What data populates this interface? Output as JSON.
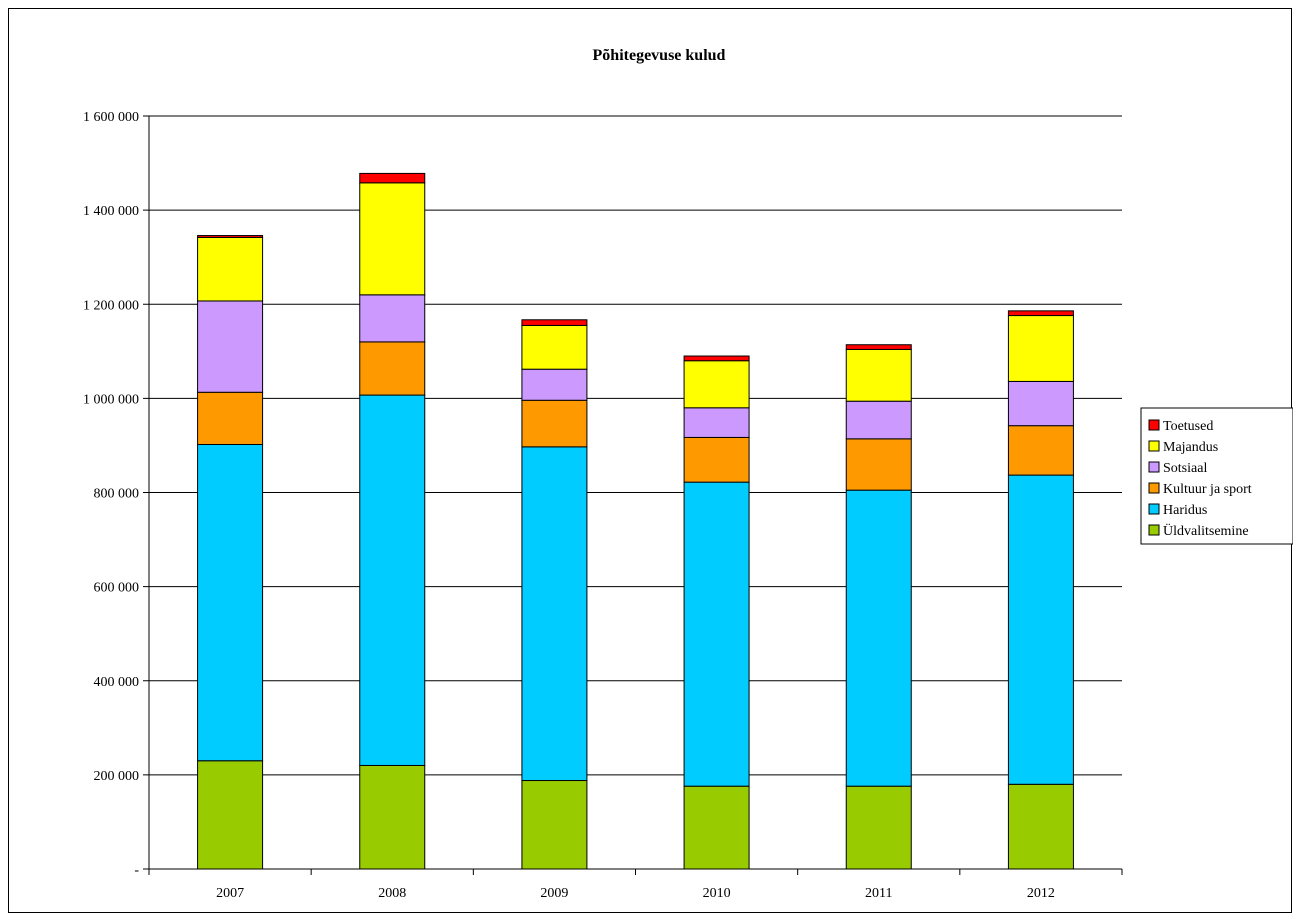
{
  "chart_data": {
    "type": "bar",
    "stacked": true,
    "title": "Põhitegevuse kulud",
    "xlabel": "",
    "ylabel": "",
    "categories": [
      "2007",
      "2008",
      "2009",
      "2010",
      "2011",
      "2012"
    ],
    "ylim": [
      0,
      1600000
    ],
    "yticks": [
      0,
      200000,
      400000,
      600000,
      800000,
      1000000,
      1200000,
      1400000,
      1600000
    ],
    "ytick_labels": [
      "-",
      "200 000",
      "400 000",
      "600 000",
      "800 000",
      "1 000 000",
      "1 200 000",
      "1 400 000",
      "1 600 000"
    ],
    "grid": true,
    "legend_position": "right",
    "series": [
      {
        "name": "Üldvalitsemine",
        "color": "#99cc00",
        "values": [
          230000,
          220000,
          188000,
          176000,
          176000,
          180000
        ]
      },
      {
        "name": "Haridus",
        "color": "#00ccff",
        "values": [
          672000,
          787000,
          709000,
          646000,
          629000,
          657000
        ]
      },
      {
        "name": "Kultuur ja sport",
        "color": "#ff9900",
        "values": [
          111000,
          113000,
          99000,
          95000,
          109000,
          105000
        ]
      },
      {
        "name": "Sotsiaal",
        "color": "#cc99ff",
        "values": [
          194000,
          100000,
          66000,
          63000,
          80000,
          94000
        ]
      },
      {
        "name": "Majandus",
        "color": "#ffff00",
        "values": [
          135000,
          238000,
          93000,
          100000,
          110000,
          140000
        ]
      },
      {
        "name": "Toetused",
        "color": "#ff0000",
        "values": [
          4000,
          20000,
          12000,
          10000,
          10000,
          10000
        ]
      }
    ]
  }
}
